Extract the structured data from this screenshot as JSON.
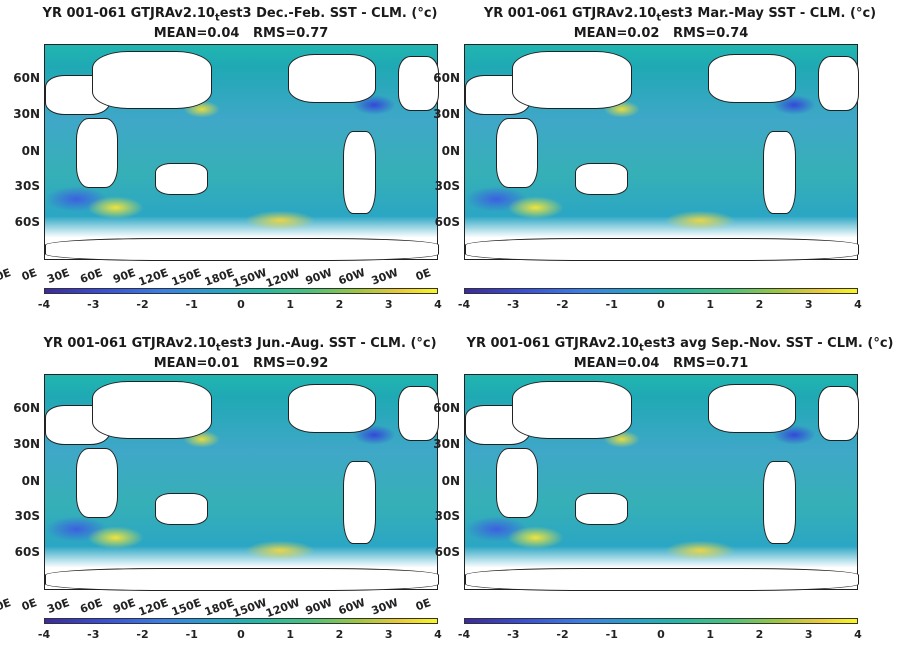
{
  "panels": [
    {
      "title_pre": "YR 001-061 GTJRAv2.10",
      "title_sub": "t",
      "title_post": "est3  Dec.-Feb. SST - CLM. (°c)",
      "stats": "MEAN=0.04   RMS=0.77"
    },
    {
      "title_pre": "YR 001-061 GTJRAv2.10",
      "title_sub": "t",
      "title_post": "est3 Mar.-May SST - CLM. (°c)",
      "stats": "MEAN=0.02   RMS=0.74"
    },
    {
      "title_pre": "YR 001-061 GTJRAv2.10",
      "title_sub": "t",
      "title_post": "est3 Jun.-Aug. SST - CLM. (°c)",
      "stats": "MEAN=0.01   RMS=0.92"
    },
    {
      "title_pre": "YR 001-061 GTJRAv2.10",
      "title_sub": "t",
      "title_post": "est3 avg Sep.-Nov. SST - CLM. (°c)",
      "stats": "MEAN=0.04   RMS=0.71"
    }
  ],
  "ylabels": [
    "60N",
    "30N",
    "0N",
    "30S",
    "60S"
  ],
  "xlabels": [
    "0E",
    "30E",
    "60E",
    "90E",
    "120E",
    "150E",
    "180E",
    "150W",
    "120W",
    "90W",
    "60W",
    "30W",
    "0E"
  ],
  "cticks": [
    "-4",
    "-3",
    "-2",
    "-1",
    "0",
    "1",
    "2",
    "3",
    "4"
  ],
  "colors": {
    "ocean": "#22b1b8",
    "land": "#ffffff"
  }
}
